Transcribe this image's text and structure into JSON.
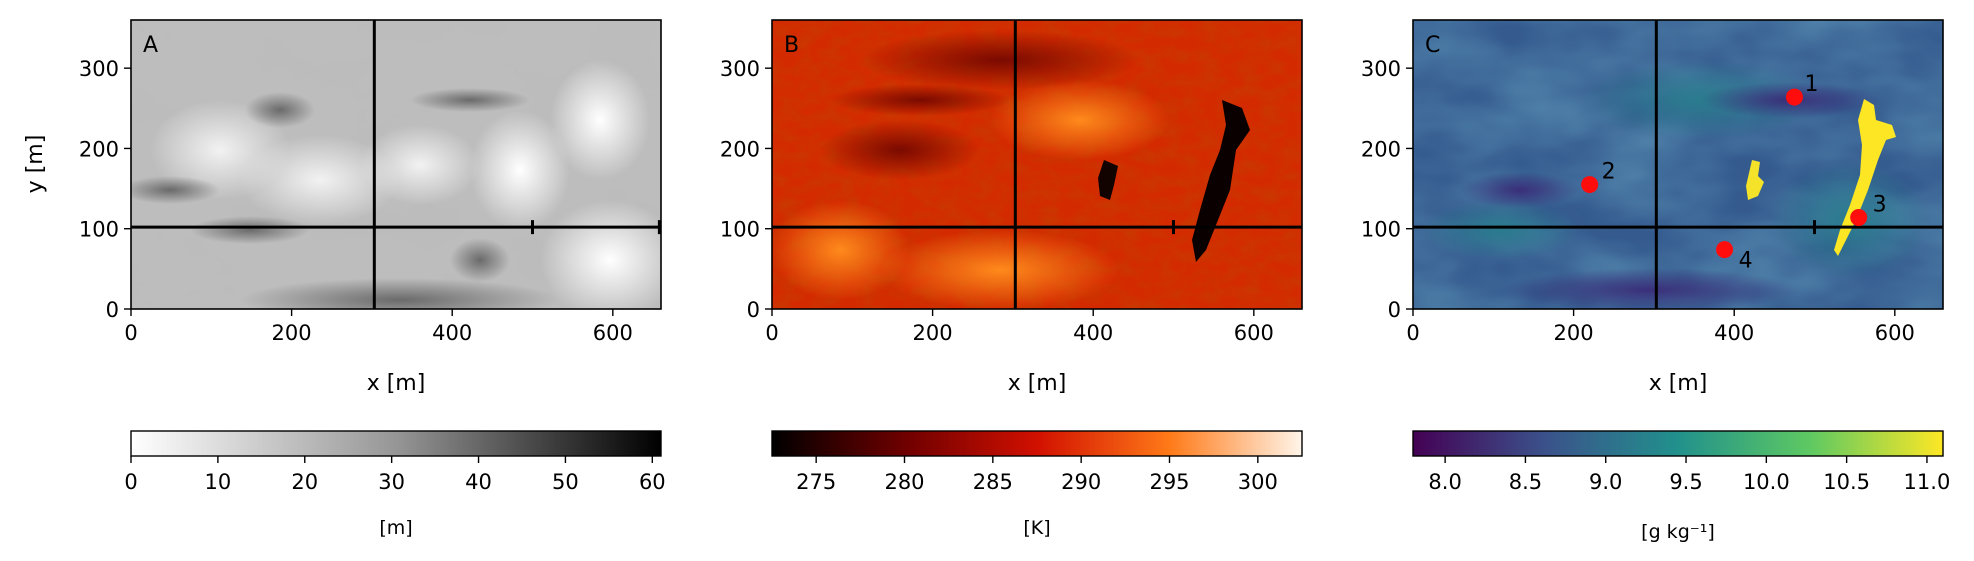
{
  "chart_data": [
    {
      "type": "heatmap",
      "panel_label": "A",
      "xlabel": "x [m]",
      "ylabel": "y [m]",
      "xlim": [
        0,
        660
      ],
      "ylim": [
        0,
        360
      ],
      "xticks": [
        0,
        200,
        400,
        600
      ],
      "yticks": [
        0,
        100,
        200,
        300
      ],
      "crosshair": {
        "x": 303,
        "y": 102
      },
      "markers_on_hline": [
        500,
        658
      ],
      "colormap": "Greys",
      "colorbar": {
        "label": "[m]",
        "range": [
          0,
          61
        ],
        "ticks": [
          0,
          10,
          20,
          30,
          40,
          50,
          60
        ]
      }
    },
    {
      "type": "heatmap",
      "panel_label": "B",
      "xlabel": "x [m]",
      "ylabel": "",
      "xlim": [
        0,
        660
      ],
      "ylim": [
        0,
        360
      ],
      "xticks": [
        0,
        200,
        400,
        600
      ],
      "yticks": [
        0,
        100,
        200,
        300
      ],
      "crosshair": {
        "x": 303,
        "y": 102
      },
      "markers_on_hline": [
        500
      ],
      "colormap": "gist_heat",
      "colorbar": {
        "label": "[K]",
        "range": [
          272.5,
          302.5
        ],
        "ticks": [
          275,
          280,
          285,
          290,
          295,
          300
        ]
      }
    },
    {
      "type": "heatmap",
      "panel_label": "C",
      "xlabel": "x [m]",
      "ylabel": "",
      "xlim": [
        0,
        660
      ],
      "ylim": [
        0,
        360
      ],
      "xticks": [
        0,
        200,
        400,
        600
      ],
      "yticks": [
        0,
        100,
        200,
        300
      ],
      "crosshair": {
        "x": 303,
        "y": 102
      },
      "markers_on_hline": [
        500
      ],
      "colormap": "viridis",
      "points": [
        {
          "label": "1",
          "x": 475,
          "y": 264
        },
        {
          "label": "2",
          "x": 220,
          "y": 155
        },
        {
          "label": "3",
          "x": 555,
          "y": 114
        },
        {
          "label": "4",
          "x": 388,
          "y": 74
        }
      ],
      "colorbar": {
        "label": "[g kg⁻¹]",
        "range": [
          7.8,
          11.1
        ],
        "ticks": [
          "8.0",
          "8.5",
          "9.0",
          "9.5",
          "10.0",
          "10.5",
          "11.0"
        ]
      }
    }
  ]
}
